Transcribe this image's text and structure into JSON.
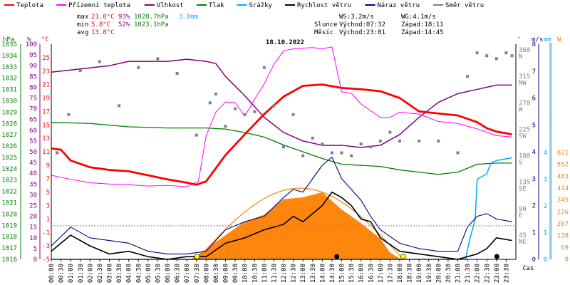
{
  "legend": [
    {
      "label": "Teplota",
      "color": "#ff0000"
    },
    {
      "label": "Přízemní teplota",
      "color": "#ff00ff"
    },
    {
      "label": "Vlhkost",
      "color": "#800080"
    },
    {
      "label": "Tlak",
      "color": "#008000"
    },
    {
      "label": "Srážky",
      "color": "#00aaff"
    },
    {
      "label": "Rychlost větru",
      "color": "#000000"
    },
    {
      "label": "Náraz větru",
      "color": "#000080"
    },
    {
      "label": "Směr větru",
      "color": "#808080"
    }
  ],
  "stats": {
    "max_label": "max",
    "max_temp": "21.0°C",
    "max_hum": "93%",
    "max_press": "1028.7hPa",
    "max_rain": "3.8mm",
    "min_label": "min",
    "min_temp": "5.8°C",
    "min_hum": "52%",
    "min_press": "1023.1hPa",
    "avg_label": "avg",
    "avg_temp": "13.8°C"
  },
  "wind_info": {
    "ws": "WS:3.2m/s",
    "wg": "WG:4.1m/s"
  },
  "sun": {
    "label": "Slunce",
    "rise": "Východ:07:32",
    "set": "Západ:18:11"
  },
  "moon": {
    "label": "Měsíc",
    "rise": "Východ:23:01",
    "set": "Západ:14:45"
  },
  "colors": {
    "temp": "#ff0000",
    "ground": "#ff00ff",
    "hum": "#800080",
    "press": "#008000",
    "rain": "#00aaff",
    "wind": "#000000",
    "gust": "#000080",
    "dir": "#808080",
    "solar": "#ff8000",
    "radiation": "#ff8000"
  },
  "chart_data": {
    "type": "line",
    "title": "18.10.2022",
    "xlabel": "čas",
    "x_ticks": [
      "00:00",
      "00:30",
      "01:00",
      "01:30",
      "02:00",
      "02:30",
      "03:00",
      "03:30",
      "04:00",
      "04:30",
      "05:00",
      "05:30",
      "06:00",
      "06:30",
      "07:00",
      "07:30",
      "08:00",
      "08:30",
      "09:00",
      "09:30",
      "10:00",
      "10:30",
      "11:00",
      "11:30",
      "12:00",
      "12:30",
      "13:00",
      "13:30",
      "14:00",
      "14:30",
      "15:00",
      "15:30",
      "16:00",
      "16:30",
      "17:00",
      "17:30",
      "18:00",
      "18:30",
      "19:00",
      "19:30",
      "20:00",
      "20:30",
      "21:00",
      "21:30",
      "22:00",
      "22:30",
      "23:00",
      "23:30"
    ],
    "axes": {
      "hpa": {
        "label": "hPa",
        "ticks": [
          "1035",
          "1034",
          "1033",
          "1032",
          "1031",
          "1030",
          "1029",
          "1028",
          "1027",
          "1026",
          "1025",
          "1024",
          "1023",
          "1022",
          "1021",
          "1020",
          "1019",
          "1018",
          "1017",
          "1016"
        ],
        "range": [
          1016,
          1035
        ]
      },
      "percent": {
        "label": "%",
        "ticks": [
          "100",
          "95",
          "90",
          "85",
          "80",
          "75",
          "70",
          "65",
          "60",
          "55",
          "50",
          "45",
          "40",
          "35",
          "30",
          "25",
          "20",
          "15",
          "10",
          "5",
          "0"
        ],
        "range": [
          0,
          100
        ]
      },
      "celsius": {
        "label": "°C",
        "ticks": [
          "25",
          "23",
          "21",
          "19",
          "17",
          "15",
          "13",
          "11",
          "9",
          "7",
          "5",
          "3",
          "1",
          "-1",
          "-3",
          "-5"
        ],
        "range": [
          -5,
          27
        ]
      },
      "direction": {
        "label": "°",
        "ticks": [
          "360",
          "315",
          "270",
          "225",
          "180",
          "135",
          "90",
          "45"
        ],
        "compass": [
          "N",
          "NW",
          "W",
          "SW",
          "S",
          "SE",
          "E",
          "NE"
        ]
      },
      "wind_ms": {
        "label": "m/s",
        "ticks": [
          "8",
          "7",
          "6",
          "5",
          "4",
          "3",
          "2",
          "1",
          "0"
        ],
        "range": [
          0,
          8
        ]
      },
      "rain_mm": {
        "label": "mm",
        "ticks": [
          "4",
          "3",
          "2",
          "1",
          "0"
        ],
        "range": [
          0,
          4
        ]
      },
      "radiation": {
        "label": "W",
        "ticks": [
          "621",
          "552",
          "483",
          "414",
          "345",
          "276",
          "207",
          "138",
          "69",
          "0"
        ],
        "range": [
          0,
          621
        ]
      }
    },
    "series": [
      {
        "name": "Teplota",
        "unit": "°C",
        "x": [
          0,
          0.5,
          1,
          2,
          3,
          4,
          5,
          6,
          7,
          7.5,
          8,
          9,
          10,
          11,
          12,
          13,
          14,
          15,
          16,
          17,
          18,
          19,
          20,
          21,
          22,
          22.5,
          23,
          23.8
        ],
        "y": [
          11.5,
          11.3,
          9.7,
          8.7,
          8.3,
          8.1,
          7.5,
          6.9,
          6.4,
          6.1,
          6.6,
          10.5,
          13.6,
          16.6,
          19.2,
          20.8,
          21.0,
          20.5,
          20.3,
          20.0,
          19.0,
          17.0,
          16.7,
          16.4,
          15.4,
          14.5,
          14.0,
          13.6
        ]
      },
      {
        "name": "Přízemní teplota",
        "unit": "°C",
        "x": [
          0,
          1,
          2,
          3,
          4,
          5,
          6,
          7,
          7.6,
          8,
          8.5,
          9,
          9.5,
          10,
          10.5,
          11,
          11.5,
          12,
          12.5,
          13,
          13.5,
          14,
          14.5,
          15,
          15.5,
          16,
          17,
          17.5,
          18,
          19,
          20,
          21,
          22,
          23,
          23.8
        ],
        "y": [
          7.5,
          6.9,
          6.4,
          6.2,
          6.1,
          5.9,
          6.0,
          5.8,
          6.6,
          13.4,
          16.9,
          18.4,
          18.3,
          16.3,
          18.8,
          21.1,
          24.0,
          26.0,
          26.3,
          26.4,
          26.5,
          26.3,
          26.6,
          19.9,
          19.7,
          18.1,
          16.1,
          16.1,
          16.9,
          16.6,
          15.5,
          15.2,
          14.4,
          13.4,
          13.2
        ]
      },
      {
        "name": "Vlhkost",
        "unit": "%",
        "x": [
          0,
          1,
          2,
          3,
          4,
          5,
          6,
          7,
          8,
          8.5,
          9,
          10,
          11,
          12,
          13,
          14,
          15,
          16,
          17,
          18,
          19,
          20,
          21,
          22,
          23,
          23.8
        ],
        "y": [
          87,
          88,
          89,
          90,
          92,
          92,
          92,
          93,
          92,
          91,
          85,
          76,
          66,
          59,
          55,
          53,
          53,
          52,
          53,
          58,
          66,
          73,
          77,
          79,
          81,
          81
        ]
      },
      {
        "name": "Tlak",
        "unit": "hPa",
        "x": [
          0,
          2,
          4,
          6,
          8,
          9,
          10,
          11,
          12,
          13,
          14,
          15,
          16,
          17,
          18,
          19,
          20,
          21,
          22,
          23,
          23.8
        ],
        "y": [
          1028.1,
          1028.0,
          1027.7,
          1027.6,
          1027.6,
          1027.5,
          1027.2,
          1026.8,
          1026.1,
          1025.5,
          1024.9,
          1024.4,
          1024.3,
          1024.2,
          1023.9,
          1023.7,
          1023.5,
          1023.7,
          1024.4,
          1024.5,
          1024.5
        ]
      },
      {
        "name": "Srážky",
        "unit": "mm",
        "x": [
          0,
          21.4,
          21.6,
          21.9,
          22.0,
          22.5,
          22.7,
          23.0,
          23.8
        ],
        "y": [
          0,
          0,
          0.7,
          1.5,
          3.0,
          3.2,
          3.6,
          3.7,
          3.8
        ]
      },
      {
        "name": "Rychlost větru",
        "unit": "m/s",
        "x": [
          0,
          1,
          2,
          3,
          4,
          5,
          6,
          7,
          8,
          9,
          10,
          11,
          12,
          12.5,
          13,
          13.5,
          14,
          14.5,
          15,
          15.5,
          16,
          16.5,
          17,
          18,
          19,
          20,
          21,
          22,
          22.5,
          23,
          23.8
        ],
        "y": [
          0.3,
          0.9,
          0.5,
          0.2,
          0.3,
          0.1,
          0,
          0.1,
          0.1,
          0.6,
          0.8,
          1.1,
          1.3,
          1.6,
          1.4,
          1.7,
          2.0,
          2.5,
          2.3,
          2.0,
          1.5,
          1.4,
          0.8,
          0.3,
          0.2,
          0.1,
          0,
          0.2,
          0.4,
          0.8,
          0.7
        ]
      },
      {
        "name": "Náraz větru",
        "unit": "m/s",
        "x": [
          0,
          1,
          2,
          3,
          4,
          5,
          6,
          7,
          8,
          9,
          10,
          11,
          12,
          12.5,
          13,
          13.5,
          14,
          14.5,
          15,
          15.5,
          16,
          16.5,
          17,
          18,
          19,
          20,
          21,
          21.5,
          22,
          22.5,
          23,
          23.8
        ],
        "y": [
          0.5,
          1.2,
          0.8,
          0.7,
          0.6,
          0.3,
          0.2,
          0.2,
          0.3,
          1.1,
          1.4,
          1.6,
          2.3,
          2.6,
          2.5,
          3.0,
          3.5,
          3.8,
          3.0,
          2.6,
          2.2,
          1.6,
          1.1,
          0.6,
          0.4,
          0.3,
          0.3,
          1.2,
          1.6,
          1.7,
          1.5,
          1.4
        ]
      },
      {
        "name": "Směr větru",
        "unit": "°",
        "x": [
          0.3,
          0.9,
          1.5,
          2.5,
          3.5,
          4.5,
          5.5,
          6.5,
          7.5,
          8.2,
          8.5,
          9,
          9.5,
          10,
          10.5,
          11,
          11.5,
          12,
          12.5,
          13,
          13.5,
          14,
          14.5,
          15,
          15.5,
          16,
          16.5,
          17,
          17.5,
          18,
          19,
          20,
          21,
          21.5,
          22,
          22.5,
          23,
          23.5,
          23.8
        ],
        "y": [
          185,
          250,
          325,
          340,
          265,
          330,
          345,
          320,
          215,
          270,
          285,
          230,
          260,
          250,
          255,
          330,
          265,
          195,
          250,
          180,
          210,
          200,
          185,
          185,
          180,
          200,
          195,
          205,
          220,
          205,
          205,
          205,
          185,
          315,
          355,
          350,
          345,
          355,
          350
        ]
      },
      {
        "name": "Radiace",
        "unit": "W",
        "x": [
          7.2,
          8,
          9,
          10,
          11,
          12,
          13,
          14,
          15,
          16,
          17,
          17.5,
          18,
          18.5
        ],
        "y": [
          0,
          60,
          140,
          220,
          260,
          350,
          360,
          390,
          290,
          210,
          120,
          40,
          5,
          0
        ]
      }
    ],
    "sun_curve": {
      "rise_h": 7.53,
      "set_h": 18.18,
      "peak_w": 414
    }
  }
}
